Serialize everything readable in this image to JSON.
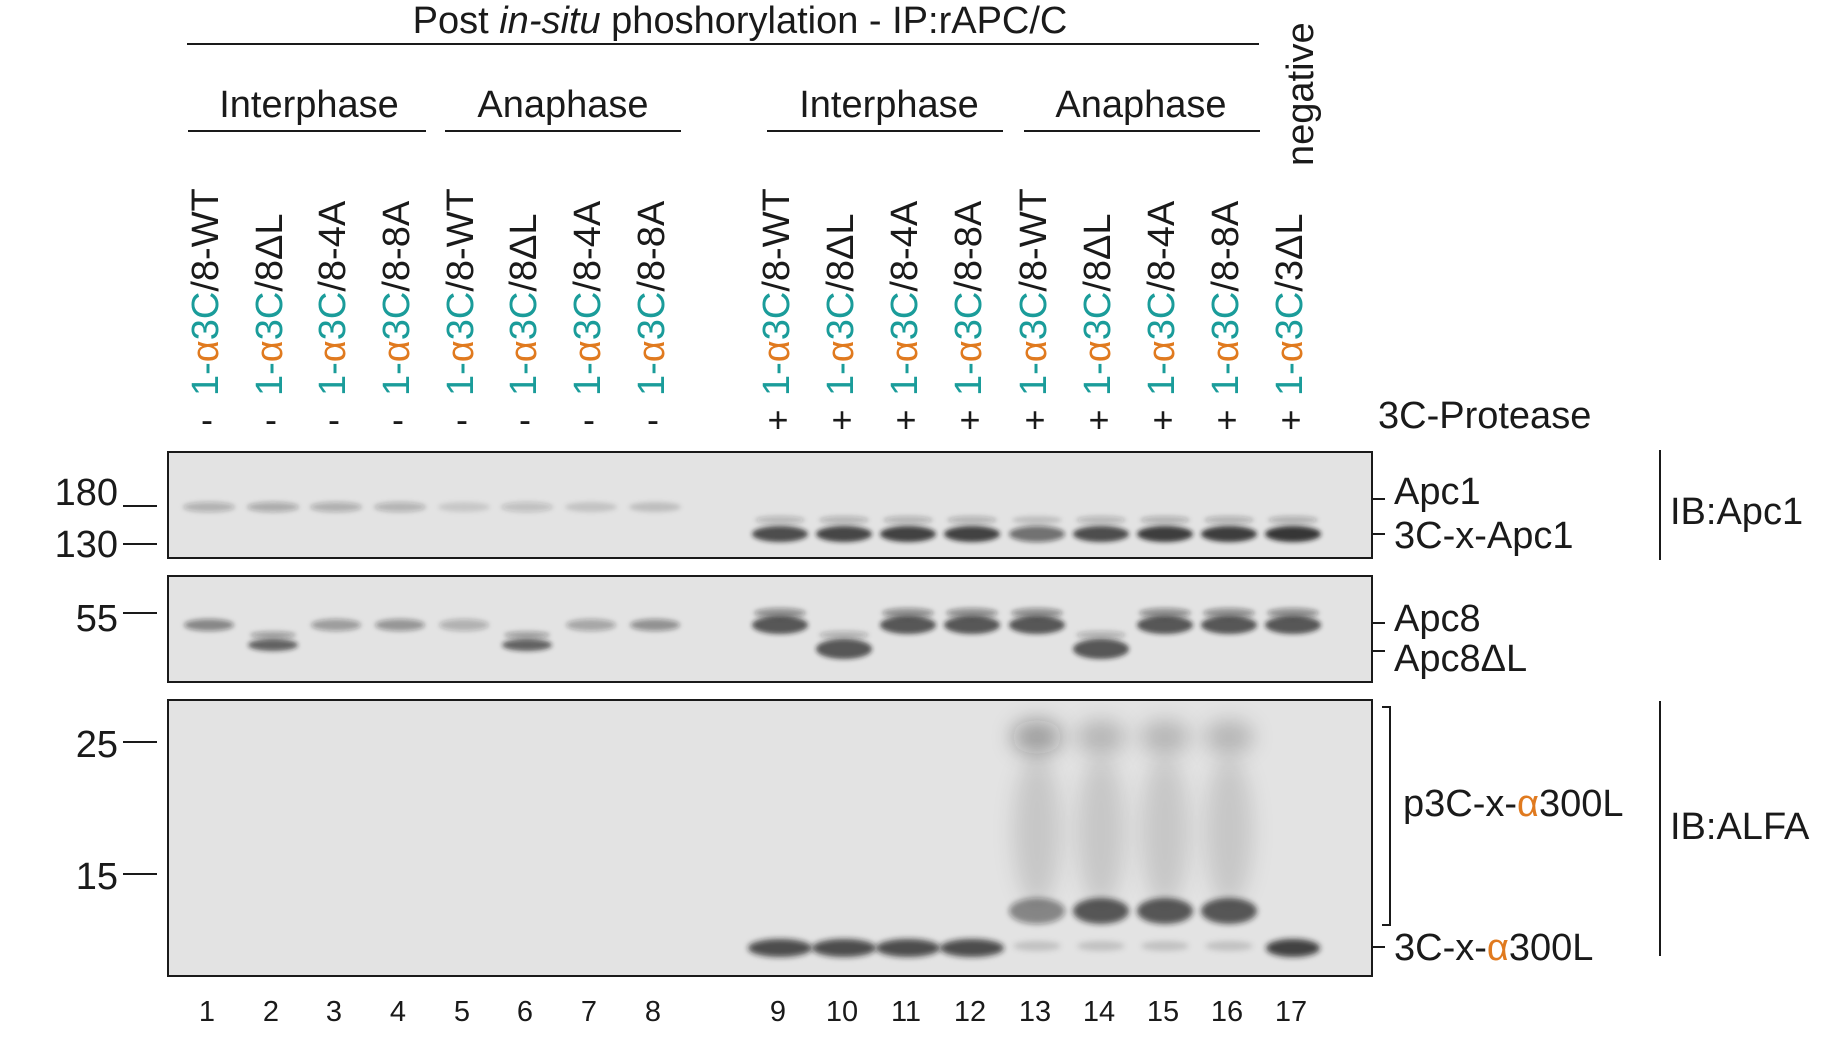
{
  "title": {
    "pre": "Post ",
    "italic": "in-situ",
    "post": " phoshorylation - IP:rAPC/C"
  },
  "groups": [
    "Interphase",
    "Anaphase",
    "Interphase",
    "Anaphase"
  ],
  "negative_label": "negative",
  "lanes": [
    {
      "a": "1-",
      "b": "α",
      "c": "3C",
      "d": "/8-WT"
    },
    {
      "a": "1-",
      "b": "α",
      "c": "3C",
      "d": "/8ΔL"
    },
    {
      "a": "1-",
      "b": "α",
      "c": "3C",
      "d": "/8-4A"
    },
    {
      "a": "1-",
      "b": "α",
      "c": "3C",
      "d": "/8-8A"
    },
    {
      "a": "1-",
      "b": "α",
      "c": "3C",
      "d": "/8-WT"
    },
    {
      "a": "1-",
      "b": "α",
      "c": "3C",
      "d": "/8ΔL"
    },
    {
      "a": "1-",
      "b": "α",
      "c": "3C",
      "d": "/8-4A"
    },
    {
      "a": "1-",
      "b": "α",
      "c": "3C",
      "d": "/8-8A"
    },
    {
      "a": "1-",
      "b": "α",
      "c": "3C",
      "d": "/8-WT"
    },
    {
      "a": "1-",
      "b": "α",
      "c": "3C",
      "d": "/8ΔL"
    },
    {
      "a": "1-",
      "b": "α",
      "c": "3C",
      "d": "/8-4A"
    },
    {
      "a": "1-",
      "b": "α",
      "c": "3C",
      "d": "/8-8A"
    },
    {
      "a": "1-",
      "b": "α",
      "c": "3C",
      "d": "/8-WT"
    },
    {
      "a": "1-",
      "b": "α",
      "c": "3C",
      "d": "/8ΔL"
    },
    {
      "a": "1-",
      "b": "α",
      "c": "3C",
      "d": "/8-4A"
    },
    {
      "a": "1-",
      "b": "α",
      "c": "3C",
      "d": "/8-8A"
    },
    {
      "a": "1-",
      "b": "α",
      "c": "3C",
      "d": "/3ΔL"
    }
  ],
  "protease": [
    "-",
    "-",
    "-",
    "-",
    "-",
    "-",
    "-",
    "-",
    "+",
    "+",
    "+",
    "+",
    "+",
    "+",
    "+",
    "+",
    "+"
  ],
  "protease_label": "3C-Protease",
  "lane_numbers": [
    "1",
    "2",
    "3",
    "4",
    "5",
    "6",
    "7",
    "8",
    "9",
    "10",
    "11",
    "12",
    "13",
    "14",
    "15",
    "16",
    "17"
  ],
  "mw_markers": [
    "180",
    "130",
    "55",
    "25",
    "15"
  ],
  "band_labels": {
    "apc1": "Apc1",
    "apc1_3c": "3C-x-Apc1",
    "apc8": "Apc8",
    "apc8dl": "Apc8ΔL",
    "p3c_pre": "p3C-x-",
    "p3c_alpha": "α",
    "p3c_post": "300L",
    "x3c_pre": "3C-x-",
    "x3c_alpha": "α",
    "x3c_post": "300L"
  },
  "ib_labels": [
    "IB:Apc1",
    "IB:ALFA"
  ],
  "colors": {
    "teal": "#1a9c9a",
    "orange": "#e07a1f",
    "ink": "#1a1a1a",
    "membrane": "#e3e3e3"
  }
}
